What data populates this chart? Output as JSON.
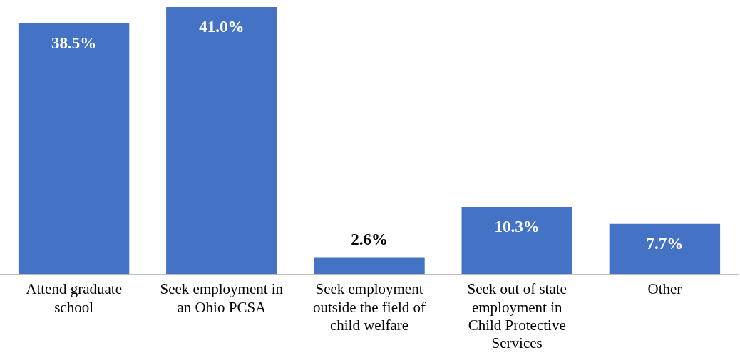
{
  "chart_data": {
    "type": "bar",
    "categories": [
      "Attend graduate school",
      "Seek employment in an Ohio PCSA",
      "Seek employment outside the field of child welfare",
      "Seek out of state employment in Child Protective Services",
      "Other"
    ],
    "values": [
      38.5,
      41.0,
      2.6,
      10.3,
      7.7
    ],
    "value_labels": [
      "38.5%",
      "41.0%",
      "2.6%",
      "10.3%",
      "7.7%"
    ],
    "color": "#4472c4",
    "grid": false,
    "legend": false
  }
}
